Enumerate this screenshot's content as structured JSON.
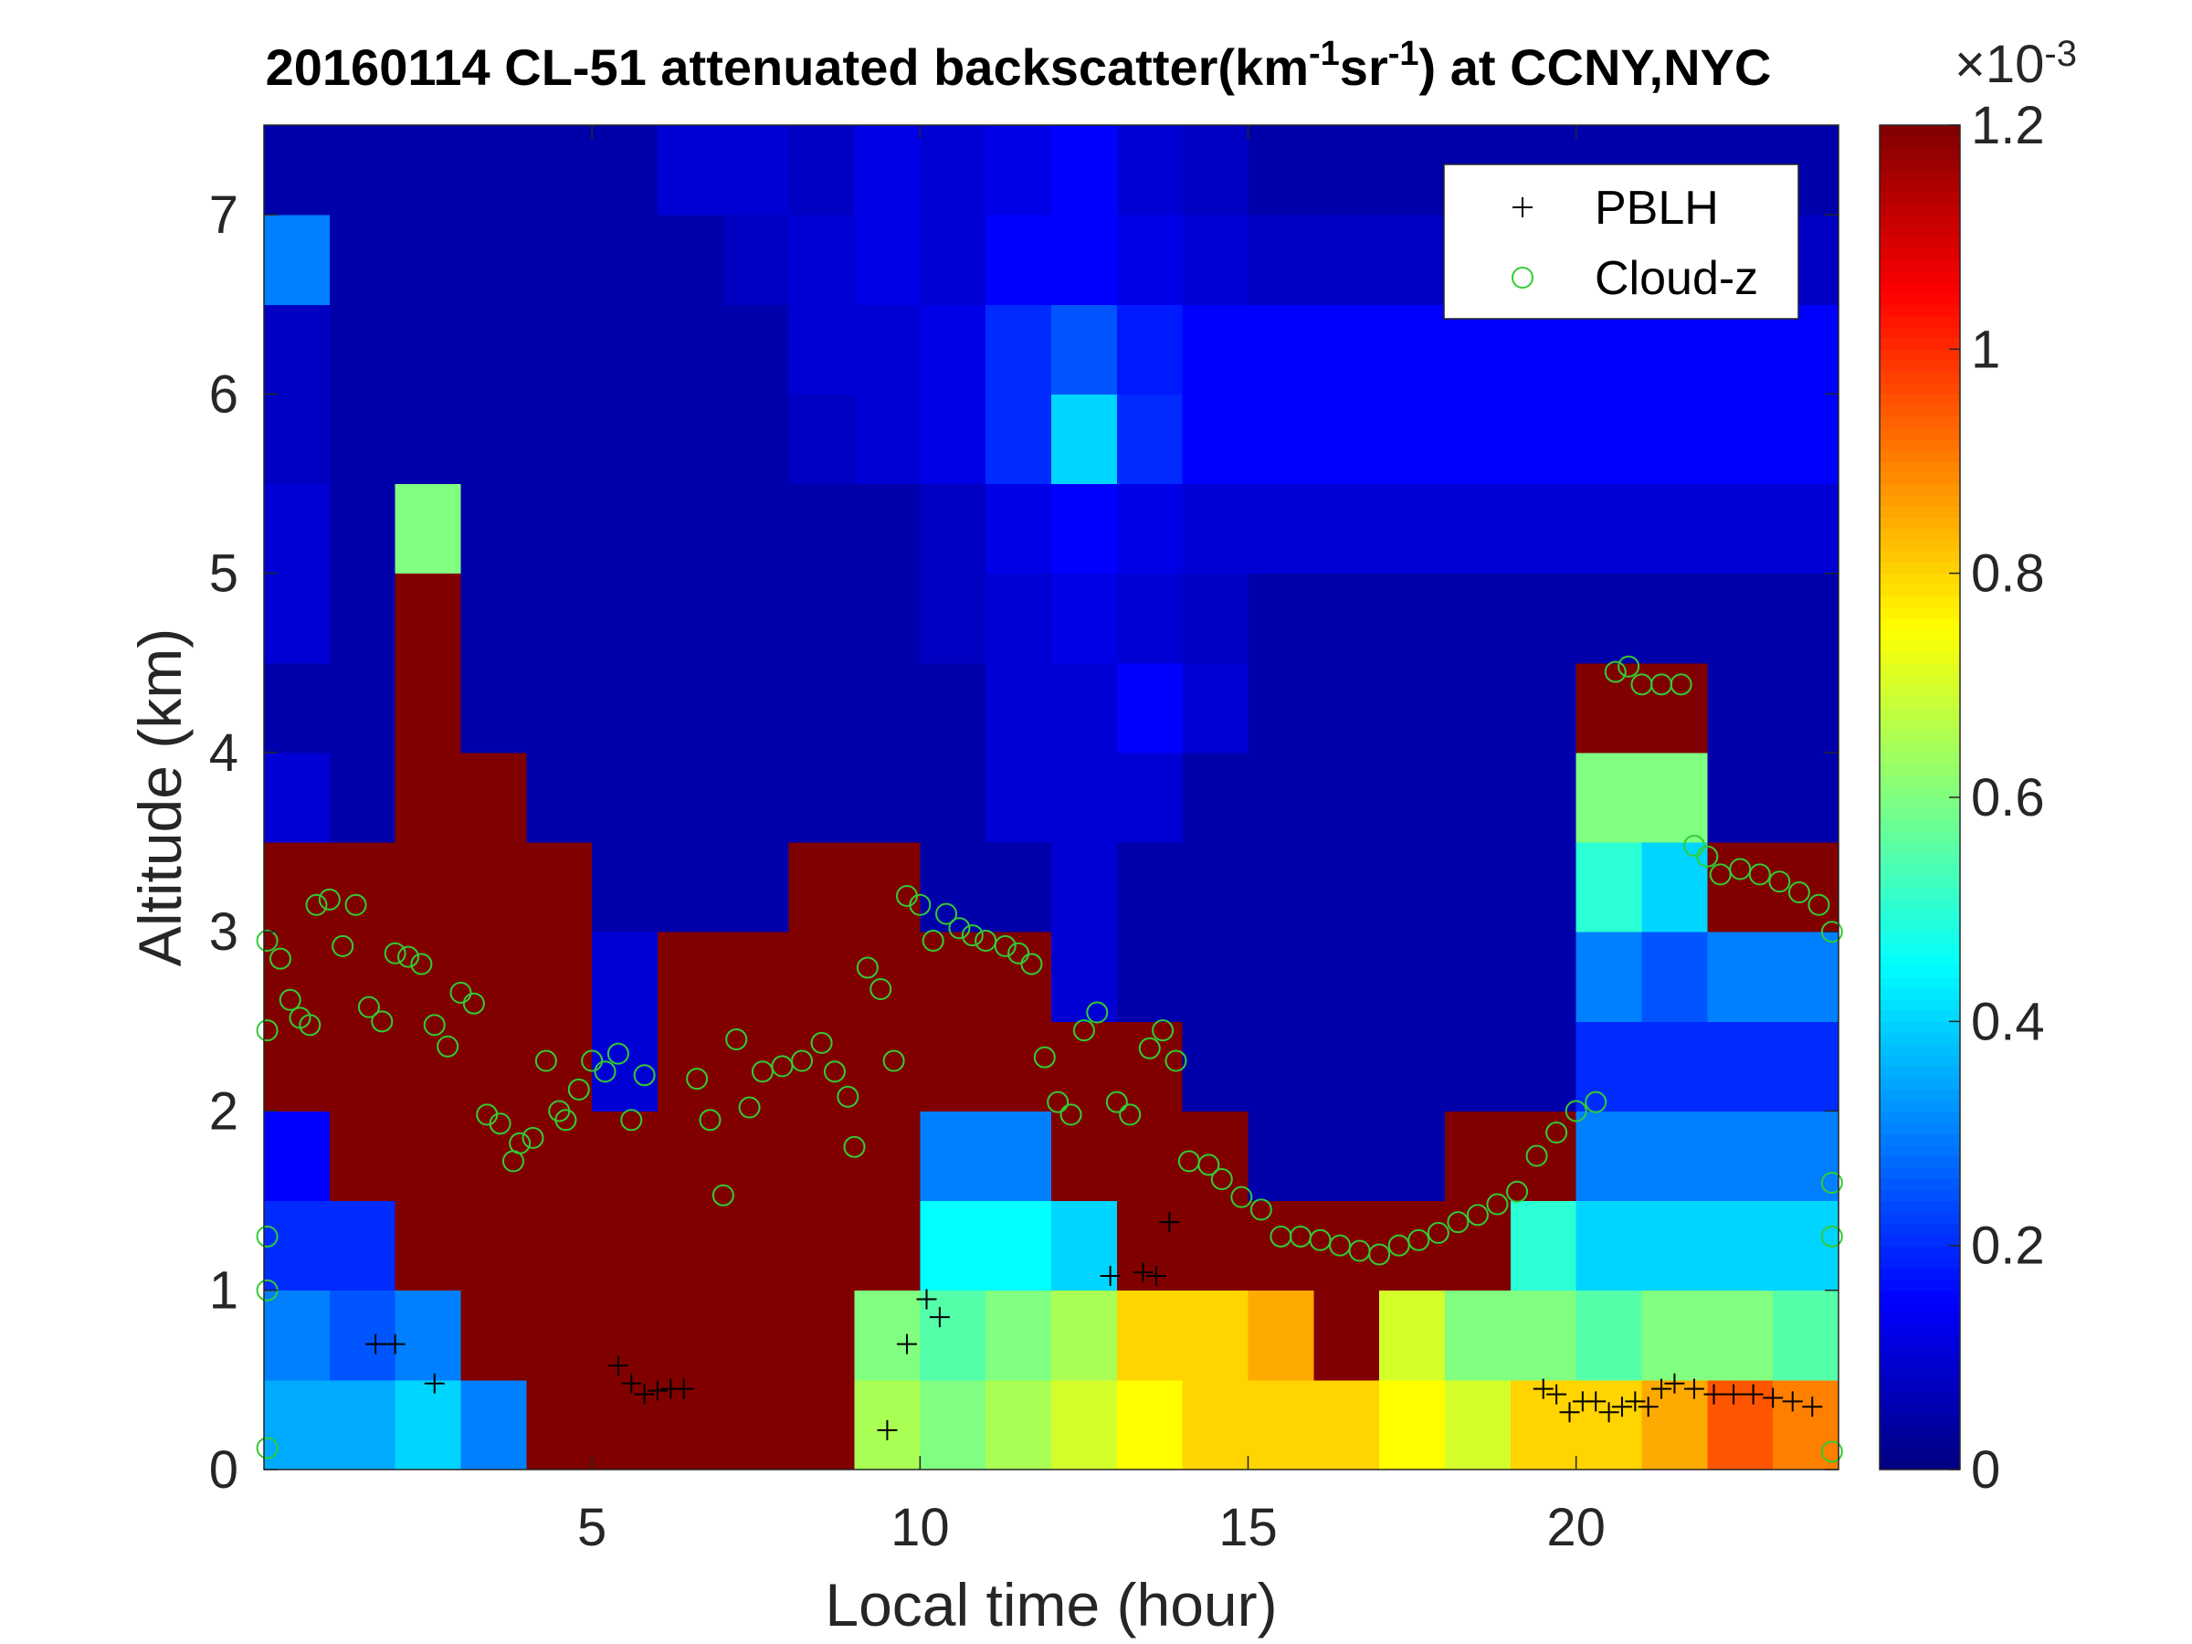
{
  "chart_data": {
    "type": "heatmap",
    "title": [
      "20160114  CL-51 attenuated backscatter(km",
      "-1",
      "sr",
      "-1",
      ") at CCNY,NYC"
    ],
    "x_label": "Local time (hour)",
    "y_label": "Altitude (km)",
    "xlim": [
      0,
      24
    ],
    "ylim": [
      0,
      7.5
    ],
    "xticks": [
      5,
      10,
      15,
      20
    ],
    "yticks": [
      0,
      1,
      2,
      3,
      4,
      5,
      6,
      7
    ],
    "colormap": "jet",
    "clim": [
      0,
      1.2
    ],
    "cticks": [
      0,
      0.2,
      0.4,
      0.6,
      0.8,
      1,
      1.2
    ],
    "colorbar_label": [
      "×10",
      "-3"
    ],
    "x": [
      0.5,
      1.5,
      2.5,
      3.5,
      4.5,
      5.5,
      6.5,
      7.5,
      8.5,
      9.5,
      10.5,
      11.5,
      12.5,
      13.5,
      14.5,
      15.5,
      16.5,
      17.5,
      18.5,
      19.5,
      20.5,
      21.5,
      22.5,
      23.5
    ],
    "y": [
      0.25,
      0.75,
      1.25,
      1.75,
      2.25,
      2.75,
      3.25,
      3.75,
      4.25,
      4.75,
      5.25,
      5.75,
      6.25,
      6.75,
      7.25
    ],
    "z": [
      [
        0.35,
        0.35,
        0.4,
        0.3,
        1.2,
        1.2,
        1.2,
        1.2,
        1.2,
        0.65,
        0.6,
        0.65,
        0.7,
        0.75,
        0.8,
        0.8,
        0.8,
        0.75,
        0.7,
        0.8,
        0.8,
        0.85,
        0.95,
        0.9
      ],
      [
        0.3,
        0.25,
        0.3,
        1.2,
        1.2,
        1.2,
        1.2,
        1.2,
        1.2,
        0.6,
        0.55,
        0.6,
        0.65,
        0.8,
        0.8,
        0.85,
        1.2,
        0.7,
        0.6,
        0.6,
        0.55,
        0.6,
        0.6,
        0.55
      ],
      [
        0.2,
        0.2,
        1.2,
        1.2,
        1.2,
        1.2,
        1.2,
        1.2,
        1.2,
        1.2,
        0.45,
        0.45,
        0.4,
        1.2,
        1.2,
        1.2,
        1.2,
        1.2,
        1.2,
        0.5,
        0.4,
        0.4,
        0.4,
        0.4
      ],
      [
        0.15,
        1.2,
        1.2,
        1.2,
        1.2,
        1.2,
        1.2,
        1.2,
        1.2,
        1.2,
        0.3,
        0.3,
        1.2,
        1.2,
        1.2,
        0.05,
        0.05,
        0.05,
        1.2,
        1.2,
        0.3,
        0.3,
        0.3,
        0.3
      ],
      [
        1.2,
        1.2,
        1.2,
        1.2,
        1.2,
        0.1,
        1.2,
        1.2,
        1.2,
        1.2,
        1.2,
        1.2,
        1.2,
        1.2,
        0.05,
        0.05,
        0.05,
        0.05,
        0.05,
        0.05,
        0.2,
        0.2,
        0.2,
        0.2
      ],
      [
        1.2,
        1.2,
        1.2,
        1.2,
        1.2,
        0.1,
        1.2,
        1.2,
        1.2,
        1.2,
        1.2,
        1.2,
        0.1,
        0.05,
        0.05,
        0.05,
        0.05,
        0.05,
        0.05,
        0.05,
        0.3,
        0.25,
        0.3,
        0.3
      ],
      [
        1.2,
        1.2,
        1.2,
        1.2,
        1.2,
        0.05,
        0.05,
        0.05,
        1.2,
        1.2,
        0.05,
        0.05,
        0.1,
        0.05,
        0.05,
        0.05,
        0.05,
        0.05,
        0.05,
        0.05,
        0.5,
        0.4,
        1.2,
        1.2
      ],
      [
        0.1,
        0.05,
        1.2,
        1.2,
        0.05,
        0.05,
        0.05,
        0.05,
        0.05,
        0.05,
        0.05,
        0.1,
        0.1,
        0.1,
        0.05,
        0.05,
        0.05,
        0.05,
        0.05,
        0.05,
        0.6,
        0.6,
        0.05,
        0.05
      ],
      [
        0.05,
        0.05,
        1.2,
        0.05,
        0.05,
        0.05,
        0.05,
        0.05,
        0.05,
        0.05,
        0.05,
        0.1,
        0.1,
        0.15,
        0.1,
        0.05,
        0.05,
        0.05,
        0.05,
        0.05,
        1.2,
        1.2,
        0.05,
        0.05
      ],
      [
        0.1,
        0.05,
        1.2,
        0.05,
        0.05,
        0.05,
        0.05,
        0.05,
        0.05,
        0.05,
        0.08,
        0.1,
        0.12,
        0.1,
        0.08,
        0.05,
        0.05,
        0.05,
        0.05,
        0.05,
        0.05,
        0.05,
        0.05,
        0.05
      ],
      [
        0.1,
        0.05,
        0.6,
        0.05,
        0.05,
        0.05,
        0.05,
        0.05,
        0.05,
        0.05,
        0.08,
        0.12,
        0.15,
        0.12,
        0.1,
        0.1,
        0.1,
        0.1,
        0.1,
        0.1,
        0.1,
        0.1,
        0.1,
        0.1
      ],
      [
        0.08,
        0.05,
        0.05,
        0.05,
        0.05,
        0.05,
        0.05,
        0.05,
        0.08,
        0.1,
        0.12,
        0.2,
        0.4,
        0.2,
        0.15,
        0.15,
        0.15,
        0.15,
        0.15,
        0.15,
        0.15,
        0.15,
        0.15,
        0.15
      ],
      [
        0.08,
        0.05,
        0.05,
        0.05,
        0.05,
        0.05,
        0.05,
        0.05,
        0.1,
        0.1,
        0.12,
        0.2,
        0.25,
        0.18,
        0.15,
        0.15,
        0.15,
        0.15,
        0.15,
        0.15,
        0.15,
        0.15,
        0.15,
        0.15
      ],
      [
        0.3,
        0.05,
        0.05,
        0.05,
        0.05,
        0.05,
        0.05,
        0.08,
        0.1,
        0.12,
        0.1,
        0.15,
        0.15,
        0.12,
        0.1,
        0.08,
        0.08,
        0.08,
        0.08,
        0.08,
        0.08,
        0.08,
        0.08,
        0.08
      ],
      [
        0.05,
        0.05,
        0.05,
        0.05,
        0.05,
        0.05,
        0.1,
        0.1,
        0.08,
        0.12,
        0.1,
        0.12,
        0.15,
        0.1,
        0.08,
        0.05,
        0.05,
        0.05,
        0.05,
        0.05,
        0.05,
        0.05,
        0.05,
        0.05
      ]
    ],
    "legend": "upper right",
    "series": [
      {
        "name": "PBLH",
        "color": "#000000",
        "marker": "+",
        "x": [
          1.7,
          2.0,
          2.6,
          5.4,
          5.6,
          5.8,
          6.0,
          6.2,
          6.4,
          9.5,
          9.8,
          10.1,
          10.3,
          12.9,
          13.4,
          13.6,
          13.8,
          19.5,
          19.7,
          19.9,
          20.1,
          20.3,
          20.5,
          20.7,
          20.9,
          21.1,
          21.3,
          21.5,
          21.8,
          22.1,
          22.4,
          22.7,
          23.0,
          23.3,
          23.6
        ],
        "y": [
          0.7,
          0.7,
          0.48,
          0.58,
          0.48,
          0.42,
          0.44,
          0.45,
          0.45,
          0.22,
          0.7,
          0.95,
          0.85,
          1.08,
          1.1,
          1.08,
          1.38,
          0.45,
          0.42,
          0.32,
          0.38,
          0.38,
          0.32,
          0.35,
          0.38,
          0.35,
          0.45,
          0.48,
          0.45,
          0.42,
          0.42,
          0.42,
          0.4,
          0.38,
          0.35
        ]
      },
      {
        "name": "Cloud-z",
        "color": "#33cc33",
        "marker": "o",
        "x": [
          0.05,
          0.25,
          0.4,
          0.55,
          0.7,
          0.8,
          1.0,
          1.2,
          1.4,
          1.6,
          1.8,
          2.0,
          2.2,
          2.4,
          2.6,
          2.8,
          3.0,
          3.2,
          3.4,
          3.6,
          3.8,
          3.9,
          4.1,
          4.3,
          4.5,
          4.6,
          4.8,
          5.0,
          5.2,
          5.4,
          5.6,
          5.8,
          6.6,
          6.8,
          7.0,
          7.2,
          7.4,
          7.6,
          7.9,
          8.2,
          8.5,
          8.7,
          8.9,
          9.0,
          9.2,
          9.4,
          9.6,
          9.8,
          10.0,
          10.2,
          10.4,
          10.6,
          10.8,
          11.0,
          11.3,
          11.5,
          11.7,
          11.9,
          12.1,
          12.3,
          12.5,
          12.7,
          13.0,
          13.2,
          13.5,
          13.7,
          13.9,
          14.1,
          14.4,
          14.6,
          14.9,
          15.2,
          15.5,
          15.8,
          16.1,
          16.4,
          16.7,
          17.0,
          17.3,
          17.6,
          17.9,
          18.2,
          18.5,
          18.8,
          19.1,
          19.4,
          19.7,
          20.0,
          20.3,
          20.6,
          20.8,
          21.0,
          21.3,
          21.6,
          21.8,
          22.0,
          22.2,
          22.5,
          22.8,
          23.1,
          23.4,
          23.7,
          23.9,
          23.9,
          23.9,
          23.9,
          0.05,
          0.05,
          0.05,
          0.05
        ],
        "y": [
          2.95,
          2.85,
          2.62,
          2.52,
          2.48,
          3.15,
          3.18,
          2.92,
          3.15,
          2.58,
          2.5,
          2.88,
          2.86,
          2.82,
          2.48,
          2.36,
          2.66,
          2.6,
          1.98,
          1.93,
          1.72,
          1.82,
          1.85,
          2.28,
          2.0,
          1.95,
          2.12,
          2.28,
          2.22,
          2.32,
          1.95,
          2.2,
          2.18,
          1.95,
          1.53,
          2.4,
          2.02,
          2.22,
          2.25,
          2.28,
          2.38,
          2.22,
          2.08,
          1.8,
          2.8,
          2.68,
          2.28,
          3.2,
          3.15,
          2.95,
          3.1,
          3.02,
          2.98,
          2.95,
          2.92,
          2.88,
          2.82,
          2.3,
          2.05,
          1.98,
          2.45,
          2.55,
          2.05,
          1.98,
          2.35,
          2.45,
          2.28,
          1.72,
          1.7,
          1.62,
          1.52,
          1.45,
          1.3,
          1.3,
          1.28,
          1.25,
          1.22,
          1.2,
          1.25,
          1.28,
          1.32,
          1.38,
          1.42,
          1.48,
          1.55,
          1.75,
          1.88,
          2.0,
          2.05,
          4.45,
          4.48,
          4.38,
          4.38,
          4.38,
          3.48,
          3.42,
          3.32,
          3.35,
          3.32,
          3.28,
          3.22,
          3.15,
          3.0,
          1.6,
          1.3,
          0.1,
          1.3,
          1.0,
          0.12,
          2.45
        ]
      }
    ]
  }
}
